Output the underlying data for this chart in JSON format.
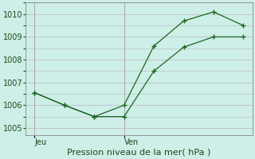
{
  "xlabel_bottom": "Pression niveau de la mer( hPa )",
  "bg_color": "#ceeee8",
  "grid_color": "#b8b8b8",
  "line_color": "#1a6620",
  "yticks": [
    1005,
    1006,
    1007,
    1008,
    1009,
    1010
  ],
  "ylim": [
    1004.7,
    1010.5
  ],
  "xtick_labels": [
    "Jeu",
    "Ven"
  ],
  "xtick_positions": [
    0,
    3
  ],
  "xlim": [
    -0.3,
    7.3
  ],
  "line1_x": [
    0,
    1,
    2,
    3,
    4,
    5,
    6,
    7
  ],
  "line1_y": [
    1006.55,
    1006.0,
    1005.5,
    1005.5,
    1007.5,
    1008.55,
    1009.0,
    1009.0
  ],
  "line2_x": [
    0,
    1,
    2,
    3,
    4,
    5,
    6,
    7
  ],
  "line2_y": [
    1006.55,
    1006.0,
    1005.5,
    1006.0,
    1008.6,
    1009.7,
    1010.1,
    1009.5
  ],
  "vline_x": [
    0,
    3
  ],
  "marker_size": 5,
  "xlabel_fontsize": 8,
  "ytick_fontsize": 7,
  "xtick_fontsize": 7
}
